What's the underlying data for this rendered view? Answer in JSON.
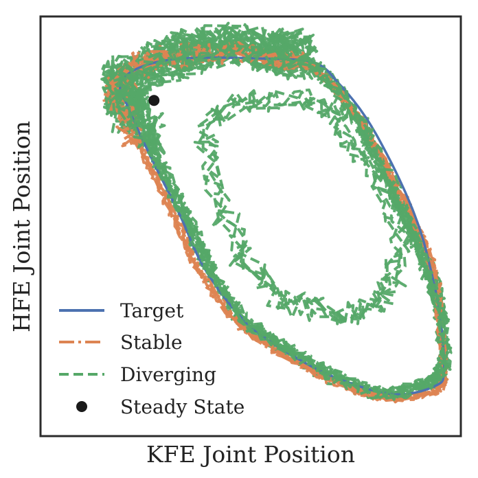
{
  "chart_data": {
    "type": "line",
    "title": "",
    "xlabel": "KFE Joint Position",
    "ylabel": "HFE Joint Position",
    "xlim": [
      0,
      1
    ],
    "ylim": [
      0,
      1
    ],
    "grid": false,
    "tick_labels_shown": false,
    "legend_placement": "lower-left",
    "colors": {
      "target": "#4c72b0",
      "stable": "#dd8452",
      "diverging": "#55a868",
      "steady_state": "#1a1a1a",
      "frame": "#2b2b2b"
    },
    "series": [
      {
        "name": "Target",
        "style": "solid",
        "x": [
          0.19,
          0.24,
          0.34,
          0.52,
          0.65,
          0.71,
          0.78,
          0.85,
          0.9,
          0.93,
          0.95,
          0.96,
          0.94,
          0.84,
          0.7,
          0.57,
          0.48,
          0.39,
          0.33,
          0.26,
          0.21,
          0.19
        ],
        "y": [
          0.84,
          0.88,
          0.9,
          0.9,
          0.89,
          0.84,
          0.75,
          0.62,
          0.5,
          0.39,
          0.29,
          0.16,
          0.12,
          0.1,
          0.14,
          0.21,
          0.28,
          0.4,
          0.53,
          0.67,
          0.78,
          0.84
        ]
      },
      {
        "name": "Stable",
        "style": "dashdot",
        "x": [
          0.18,
          0.25,
          0.36,
          0.53,
          0.64,
          0.7,
          0.77,
          0.84,
          0.9,
          0.94,
          0.95,
          0.96,
          0.94,
          0.83,
          0.7,
          0.57,
          0.47,
          0.38,
          0.32,
          0.25,
          0.2,
          0.18
        ],
        "y": [
          0.83,
          0.89,
          0.91,
          0.91,
          0.88,
          0.83,
          0.74,
          0.61,
          0.49,
          0.38,
          0.28,
          0.15,
          0.11,
          0.09,
          0.13,
          0.2,
          0.27,
          0.39,
          0.52,
          0.66,
          0.77,
          0.83
        ]
      },
      {
        "name": "Diverging",
        "style": "dashed",
        "x": [
          0.2,
          0.3,
          0.42,
          0.55,
          0.63,
          0.7,
          0.77,
          0.83,
          0.88,
          0.92,
          0.95,
          0.96,
          0.93,
          0.82,
          0.7,
          0.58,
          0.48,
          0.4,
          0.34,
          0.27,
          0.22,
          0.2
        ],
        "y": [
          0.84,
          0.9,
          0.93,
          0.92,
          0.89,
          0.83,
          0.73,
          0.61,
          0.5,
          0.4,
          0.3,
          0.18,
          0.13,
          0.1,
          0.14,
          0.21,
          0.28,
          0.4,
          0.53,
          0.67,
          0.78,
          0.84
        ]
      }
    ],
    "inner_loop": {
      "name": "Diverging",
      "x": [
        0.4,
        0.52,
        0.65,
        0.72,
        0.8,
        0.85,
        0.84,
        0.78,
        0.68,
        0.58,
        0.49,
        0.43,
        0.4
      ],
      "y": [
        0.75,
        0.8,
        0.79,
        0.73,
        0.62,
        0.5,
        0.38,
        0.3,
        0.3,
        0.33,
        0.41,
        0.55,
        0.75
      ]
    },
    "steady_state": {
      "name": "Steady State",
      "x": [
        0.27
      ],
      "y": [
        0.8
      ]
    },
    "legend": [
      "Target",
      "Stable",
      "Diverging",
      "Steady State"
    ]
  }
}
